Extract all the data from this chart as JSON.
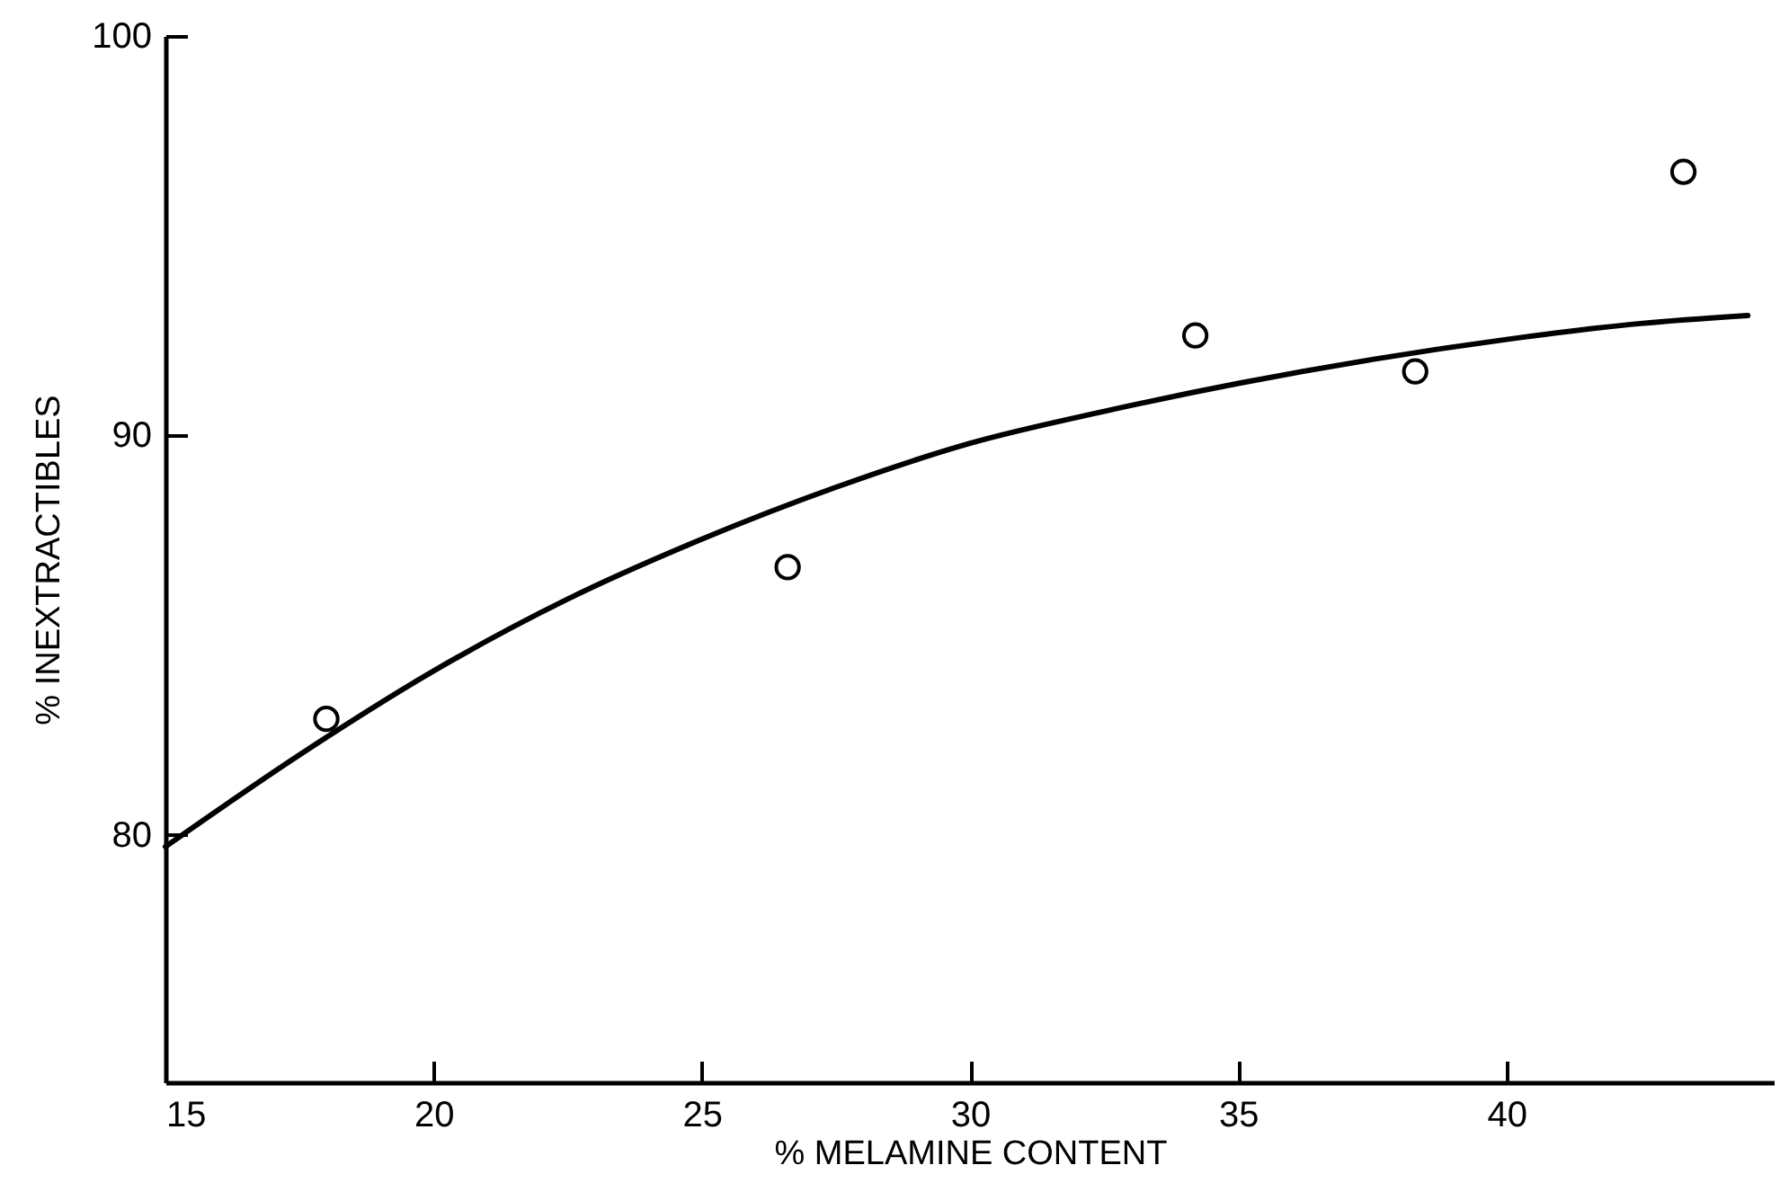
{
  "chart_data": {
    "type": "scatter",
    "xlabel": "% MELAMINE CONTENT",
    "ylabel": "% INEXTRACTIBLES",
    "xlim": [
      15,
      45
    ],
    "ylim": [
      73.8,
      100
    ],
    "xticks": [
      15,
      20,
      25,
      30,
      35,
      40
    ],
    "yticks": [
      80,
      90,
      100
    ],
    "grid": false,
    "series": [
      {
        "type": "line",
        "color": "#000000",
        "marker": "none",
        "line_style": "solid",
        "x": [
          15,
          17.5,
          20,
          22.5,
          25,
          27.5,
          30,
          32.5,
          35,
          37.5,
          40,
          42.5,
          44.5
        ],
        "values": [
          79.7,
          82.0,
          84.1,
          85.9,
          87.4,
          88.7,
          89.8,
          90.6,
          91.3,
          91.9,
          92.4,
          92.8,
          93.0
        ]
      },
      {
        "color": "#000000",
        "marker": "circle",
        "x": [
          18,
          26.6,
          34.2,
          38.3,
          43.3
        ],
        "values": [
          82.9,
          86.7,
          92.5,
          91.6,
          96.6
        ]
      }
    ]
  }
}
